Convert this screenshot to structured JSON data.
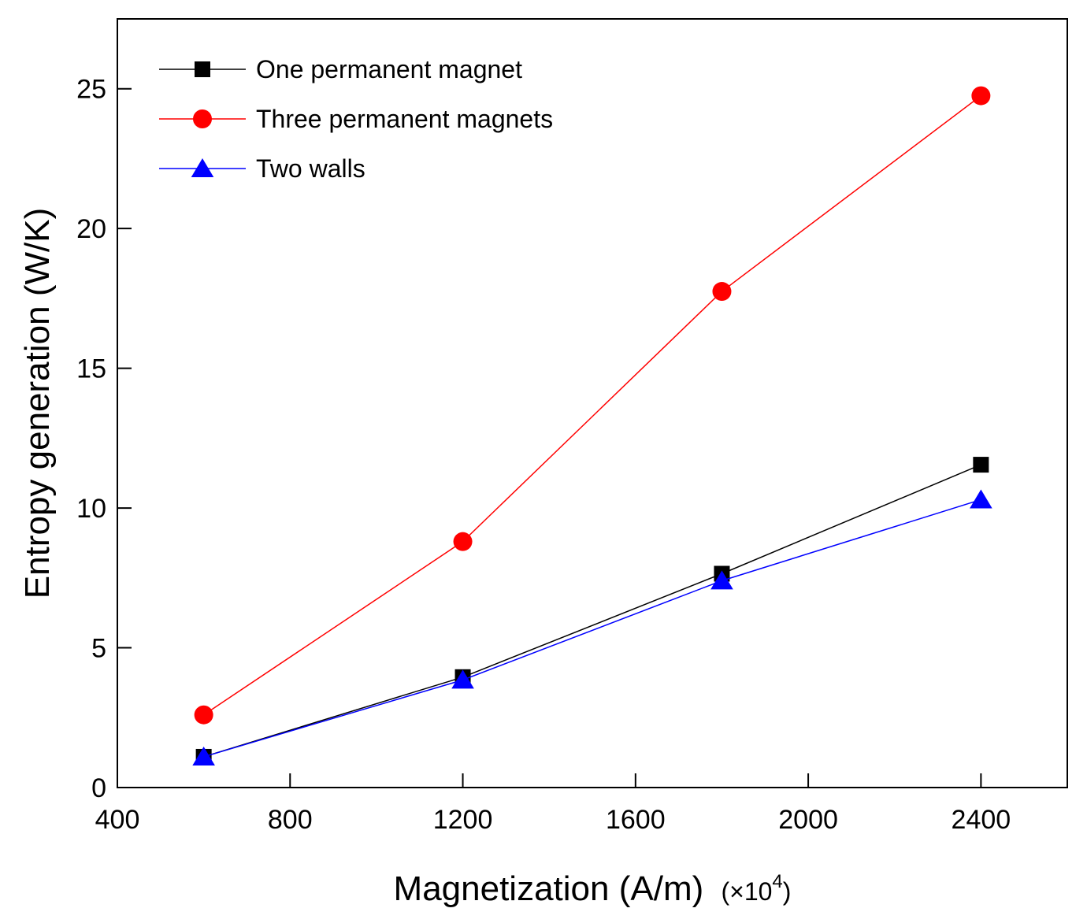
{
  "chart_data": {
    "type": "line",
    "title": "",
    "xlabel": "Magnetization (A/m)",
    "xlabel_unit_factor": "(×10",
    "xlabel_unit_exponent": "4",
    "xlabel_unit_close": ")",
    "ylabel": "Entropy generation (W/K)",
    "xlim": [
      400,
      2600
    ],
    "ylim": [
      0,
      27.5
    ],
    "xticks": [
      400,
      800,
      1200,
      1600,
      2000,
      2400
    ],
    "yticks": [
      0,
      5,
      10,
      15,
      20,
      25
    ],
    "legend_position": "top-left",
    "series": [
      {
        "name": "One permanent magnet",
        "color": "#000000",
        "marker": "square",
        "x": [
          600,
          1200,
          1800,
          2400
        ],
        "y": [
          1.1,
          3.95,
          7.65,
          11.55
        ]
      },
      {
        "name": "Three permanent magnets",
        "color": "#ff0000",
        "marker": "circle",
        "x": [
          600,
          1200,
          1800,
          2400
        ],
        "y": [
          2.6,
          8.8,
          17.75,
          24.75
        ]
      },
      {
        "name": "Two walls",
        "color": "#0000ff",
        "marker": "triangle",
        "x": [
          600,
          1200,
          1800,
          2400
        ],
        "y": [
          1.1,
          3.85,
          7.4,
          10.3
        ]
      }
    ]
  }
}
